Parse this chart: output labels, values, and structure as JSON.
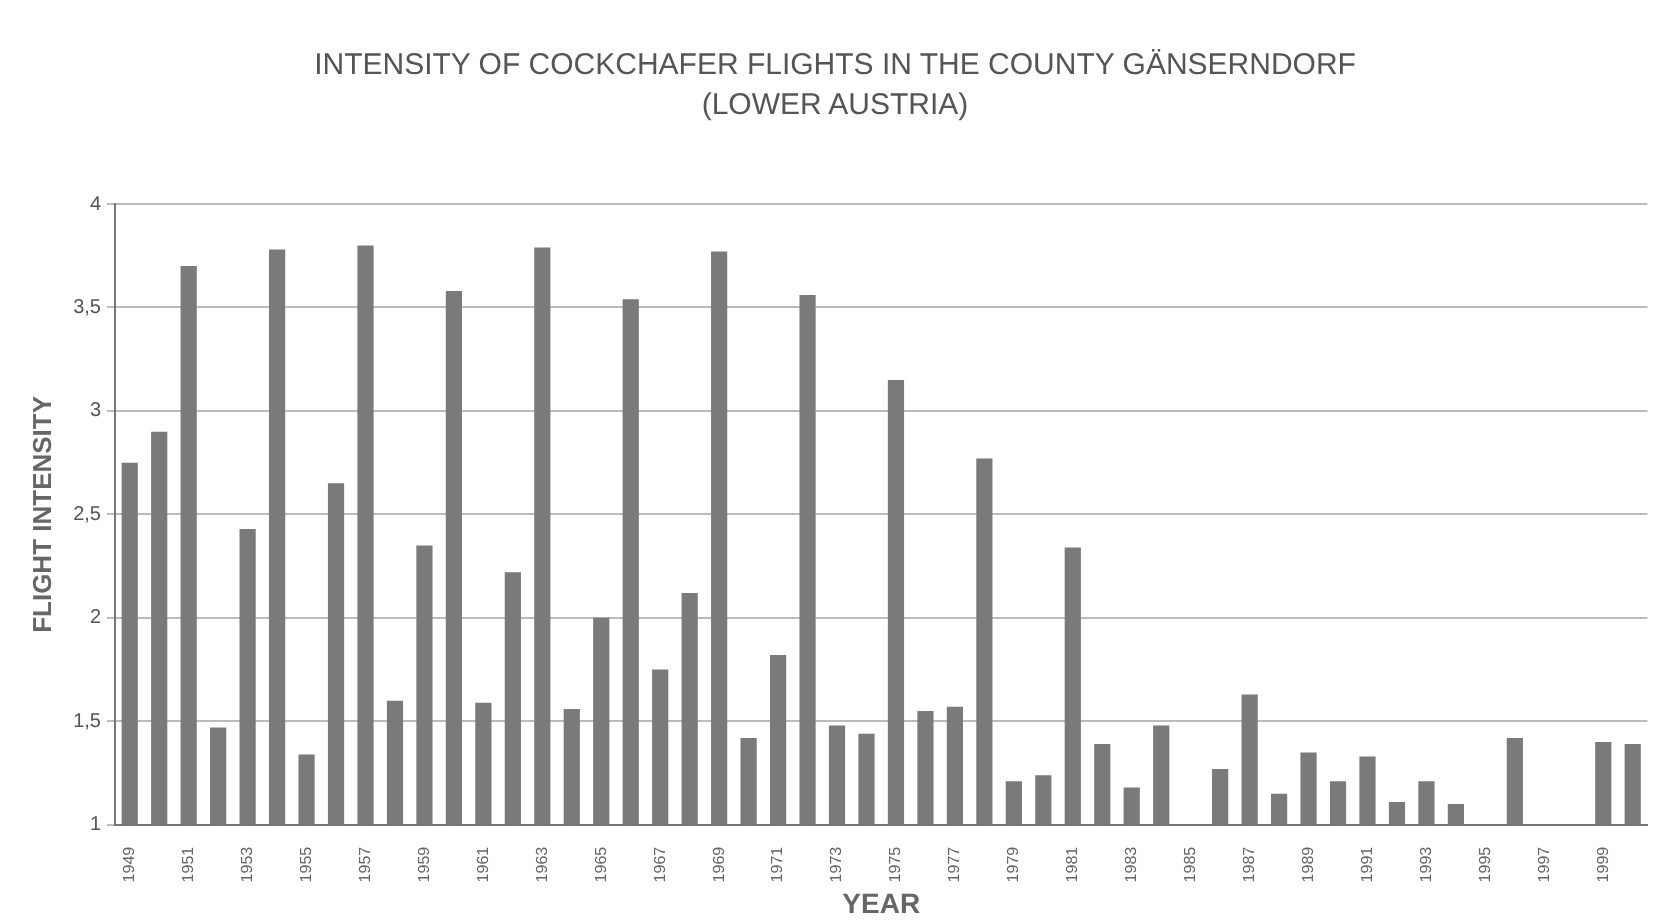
{
  "chart_data": {
    "type": "bar",
    "title": "INTENSITY OF COCKCHAFER FLIGHTS IN THE COUNTY GÄNSERNDORF",
    "subtitle": "(LOWER AUSTRIA)",
    "xlabel": "YEAR",
    "ylabel": "FLIGHT INTENSITY",
    "categories": [
      "1949",
      null,
      "1951",
      null,
      "1953",
      null,
      "1955",
      null,
      "1957",
      null,
      "1959",
      null,
      "1961",
      null,
      "1963",
      null,
      "1965",
      null,
      "1967",
      null,
      "1969",
      null,
      "1971",
      null,
      "1973",
      null,
      "1975",
      null,
      "1977",
      null,
      "1979",
      null,
      "1981",
      null,
      "1983",
      null,
      "1985",
      null,
      "1987",
      null,
      "1989",
      null,
      "1991",
      null,
      "1993",
      null,
      "1995",
      null,
      "1997",
      null,
      "1999",
      null
    ],
    "values": [
      2.75,
      2.9,
      3.7,
      1.47,
      2.43,
      3.78,
      1.34,
      2.65,
      3.8,
      1.6,
      2.35,
      3.58,
      1.59,
      2.22,
      3.79,
      1.56,
      2.0,
      3.54,
      1.75,
      2.12,
      3.77,
      1.42,
      1.82,
      3.56,
      1.48,
      1.44,
      3.15,
      1.55,
      1.57,
      2.77,
      1.21,
      1.24,
      2.34,
      1.39,
      1.18,
      1.48,
      null,
      1.27,
      1.63,
      1.15,
      1.35,
      1.21,
      1.33,
      1.11,
      1.21,
      1.1,
      null,
      1.42,
      null,
      null,
      1.4,
      1.39
    ],
    "color": "#7a7a7a",
    "ylim": [
      1,
      4
    ],
    "yticks": [
      1,
      {
        "value": 1.5,
        "label": "1,5"
      },
      2,
      {
        "value": 2.5,
        "label": "2,5"
      },
      3,
      {
        "value": 3.5,
        "label": "3,5"
      },
      4
    ],
    "grid": "y"
  }
}
